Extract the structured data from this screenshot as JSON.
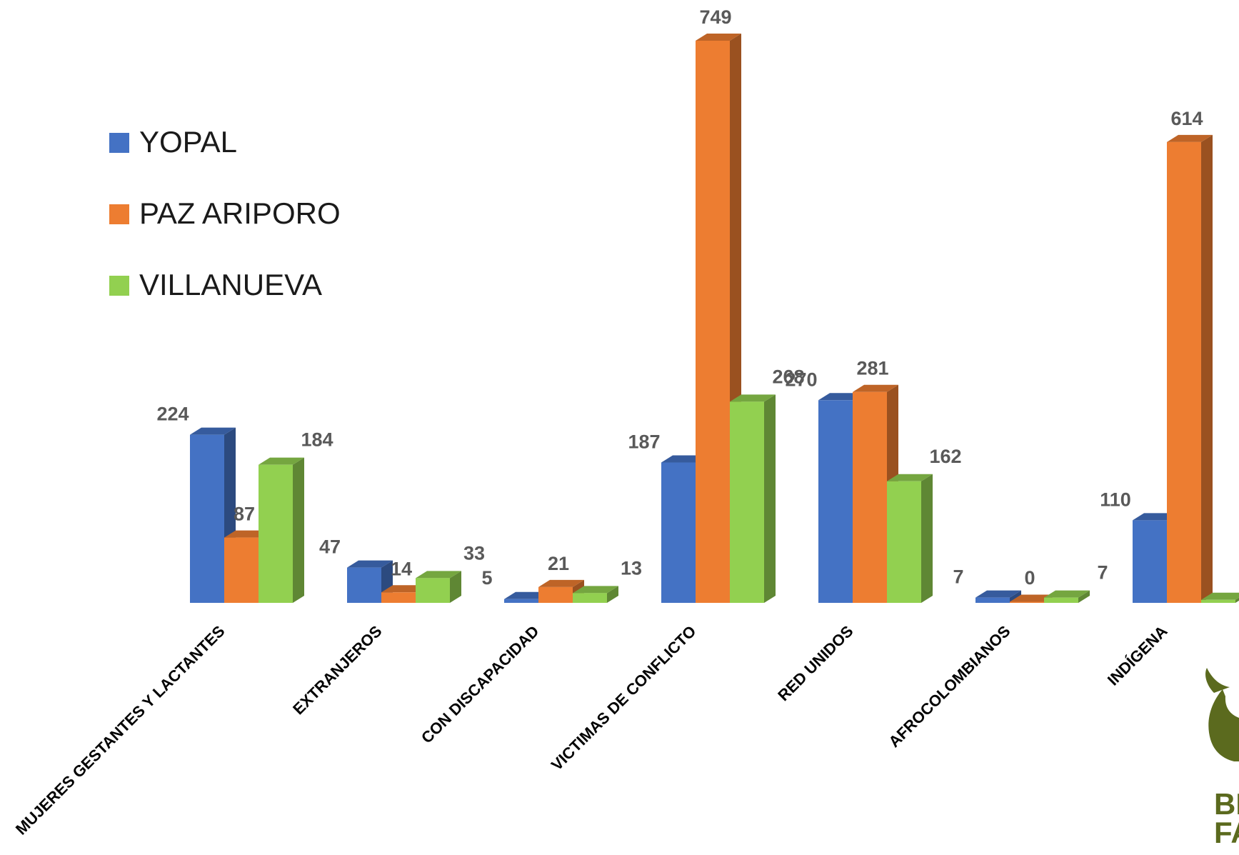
{
  "chart_data": {
    "type": "bar",
    "categories": [
      "MUJERES GESTANTES Y LACTANTES",
      "EXTRANJEROS",
      "CON DISCAPACIDAD",
      "VICTIMAS DE CONFLICTO",
      "RED UNIDOS",
      "AFROCOLOMBIANOS",
      "INDÍGENA"
    ],
    "series": [
      {
        "name": "YOPAL",
        "color": "#4472c4",
        "values": [
          224,
          47,
          5,
          187,
          270,
          7,
          110
        ]
      },
      {
        "name": "PAZ ARIPORO",
        "color": "#ed7d31",
        "values": [
          87,
          14,
          21,
          749,
          281,
          0,
          614
        ]
      },
      {
        "name": "VILLANUEVA",
        "color": "#92d050",
        "values": [
          184,
          33,
          13,
          268,
          162,
          7,
          4
        ]
      }
    ],
    "title": "",
    "xlabel": "",
    "ylabel": "",
    "ylim": [
      0,
      749
    ],
    "grid": false,
    "legend_position": "top-left",
    "style": "3d-clustered-column"
  },
  "logo": {
    "icon": "family-hands-logo-icon",
    "text_line1": "BIEN",
    "text_line2": "FAM",
    "color": "#5b6a1e"
  }
}
